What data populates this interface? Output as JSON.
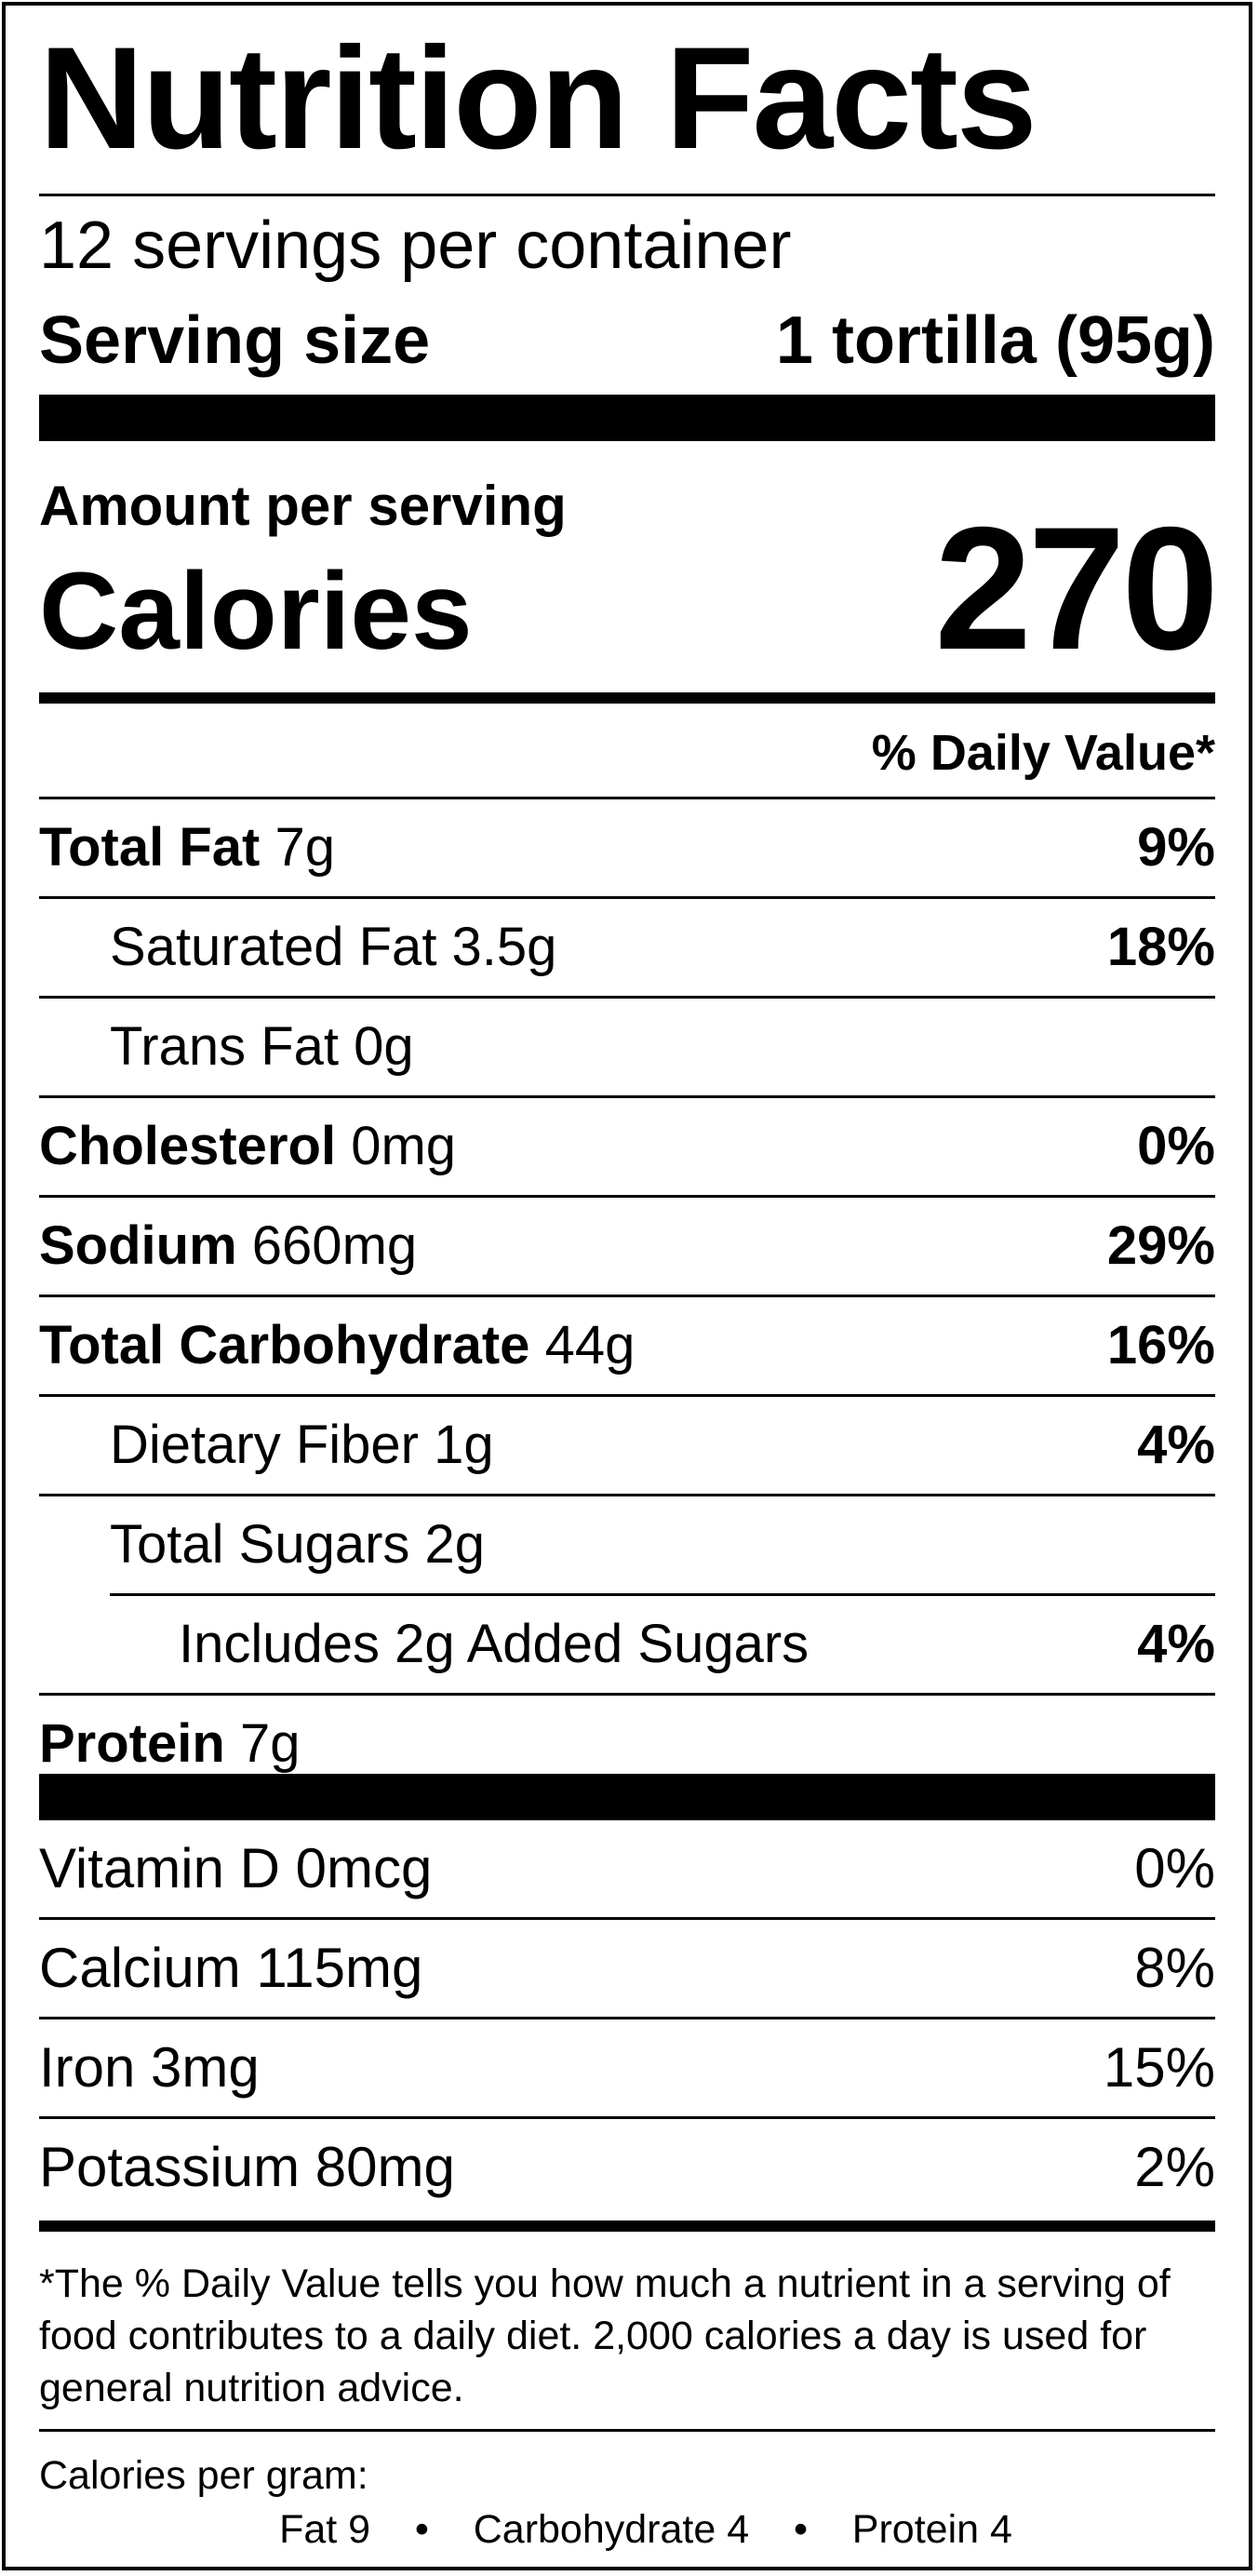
{
  "title": "Nutrition Facts",
  "servings_per_container": "12 servings per container",
  "serving_size": {
    "label": "Serving size",
    "value": "1 tortilla (95g)"
  },
  "amount_per_serving": "Amount per serving",
  "calories": {
    "label": "Calories",
    "value": "270"
  },
  "daily_value_header": "% Daily Value*",
  "nutrients": [
    {
      "name": "Total Fat",
      "amount": "7g",
      "dv": "9%"
    },
    {
      "name": "Saturated Fat 3.5g",
      "dv": "18%"
    },
    {
      "name": "Trans Fat 0g",
      "dv": ""
    },
    {
      "name": "Cholesterol",
      "amount": "0mg",
      "dv": "0%"
    },
    {
      "name": "Sodium",
      "amount": "660mg",
      "dv": "29%"
    },
    {
      "name": "Total Carbohydrate",
      "amount": "44g",
      "dv": "16%"
    },
    {
      "name": "Dietary Fiber 1g",
      "dv": "4%"
    },
    {
      "name": "Total Sugars 2g",
      "dv": ""
    },
    {
      "name": "Includes 2g Added Sugars",
      "dv": "4%"
    },
    {
      "name": "Protein",
      "amount": "7g",
      "dv": ""
    }
  ],
  "vitamins": [
    {
      "name": "Vitamin D 0mcg",
      "dv": "0%"
    },
    {
      "name": "Calcium 115mg",
      "dv": "8%"
    },
    {
      "name": "Iron 3mg",
      "dv": "15%"
    },
    {
      "name": "Potassium 80mg",
      "dv": "2%"
    }
  ],
  "footnote": "*The % Daily Value tells you how much a nutrient in a serving of food contributes to a daily diet. 2,000 calories a day is used for general nutrition advice.",
  "calories_per_gram": {
    "label": "Calories per gram:",
    "fat": "Fat 9",
    "separator": "•",
    "carbohydrate": "Carbohydrate 4",
    "protein": "Protein 4"
  }
}
